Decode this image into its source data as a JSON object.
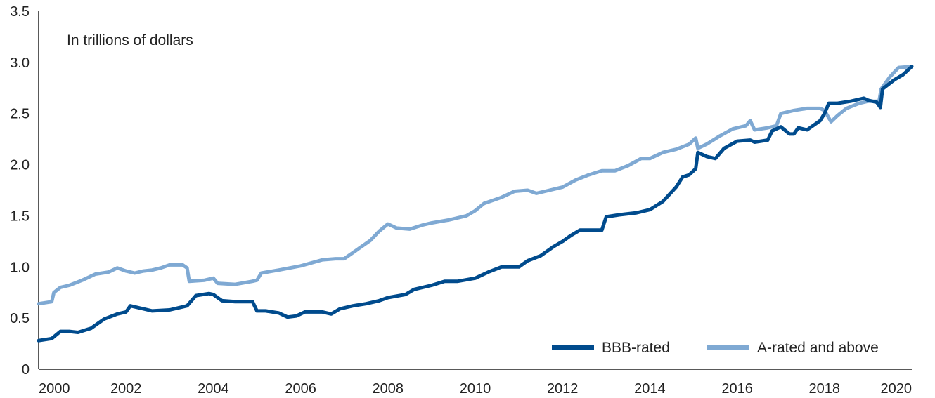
{
  "chart_data": {
    "type": "line",
    "title": "",
    "annotation": "In trillions of dollars",
    "xlabel": "",
    "ylabel": "",
    "xlim": [
      2000,
      2020
    ],
    "ylim": [
      0,
      3.5
    ],
    "x_ticks": [
      "2000",
      "2002",
      "2004",
      "2006",
      "2008",
      "2010",
      "2012",
      "2014",
      "2016",
      "2018",
      "2020"
    ],
    "y_ticks": [
      "0",
      "0.5",
      "1.0",
      "1.5",
      "2.0",
      "2.5",
      "3.0",
      "3.5"
    ],
    "grid": false,
    "legend_position": "bottom-right",
    "series": [
      {
        "name": "BBB-rated",
        "color": "#004b8d",
        "points": [
          [
            2000.0,
            0.28
          ],
          [
            2000.3,
            0.3
          ],
          [
            2000.5,
            0.37
          ],
          [
            2000.7,
            0.37
          ],
          [
            2000.9,
            0.36
          ],
          [
            2001.2,
            0.4
          ],
          [
            2001.5,
            0.49
          ],
          [
            2001.8,
            0.54
          ],
          [
            2002.0,
            0.56
          ],
          [
            2002.1,
            0.62
          ],
          [
            2002.4,
            0.59
          ],
          [
            2002.6,
            0.57
          ],
          [
            2003.0,
            0.58
          ],
          [
            2003.4,
            0.62
          ],
          [
            2003.6,
            0.72
          ],
          [
            2003.9,
            0.74
          ],
          [
            2004.0,
            0.73
          ],
          [
            2004.2,
            0.67
          ],
          [
            2004.5,
            0.66
          ],
          [
            2004.9,
            0.66
          ],
          [
            2005.0,
            0.57
          ],
          [
            2005.2,
            0.57
          ],
          [
            2005.5,
            0.55
          ],
          [
            2005.7,
            0.51
          ],
          [
            2005.9,
            0.52
          ],
          [
            2006.1,
            0.56
          ],
          [
            2006.5,
            0.56
          ],
          [
            2006.7,
            0.54
          ],
          [
            2006.9,
            0.59
          ],
          [
            2007.2,
            0.62
          ],
          [
            2007.5,
            0.64
          ],
          [
            2007.8,
            0.67
          ],
          [
            2008.0,
            0.7
          ],
          [
            2008.4,
            0.73
          ],
          [
            2008.6,
            0.78
          ],
          [
            2009.0,
            0.82
          ],
          [
            2009.3,
            0.86
          ],
          [
            2009.6,
            0.86
          ],
          [
            2010.0,
            0.89
          ],
          [
            2010.3,
            0.95
          ],
          [
            2010.6,
            1.0
          ],
          [
            2010.8,
            1.0
          ],
          [
            2011.0,
            1.0
          ],
          [
            2011.2,
            1.06
          ],
          [
            2011.5,
            1.11
          ],
          [
            2011.8,
            1.2
          ],
          [
            2012.0,
            1.25
          ],
          [
            2012.2,
            1.31
          ],
          [
            2012.4,
            1.36
          ],
          [
            2012.9,
            1.36
          ],
          [
            2013.0,
            1.49
          ],
          [
            2013.3,
            1.51
          ],
          [
            2013.7,
            1.53
          ],
          [
            2014.0,
            1.56
          ],
          [
            2014.3,
            1.64
          ],
          [
            2014.6,
            1.78
          ],
          [
            2014.75,
            1.88
          ],
          [
            2014.9,
            1.9
          ],
          [
            2015.05,
            1.96
          ],
          [
            2015.1,
            2.12
          ],
          [
            2015.3,
            2.08
          ],
          [
            2015.5,
            2.06
          ],
          [
            2015.7,
            2.16
          ],
          [
            2016.0,
            2.23
          ],
          [
            2016.3,
            2.24
          ],
          [
            2016.4,
            2.22
          ],
          [
            2016.7,
            2.24
          ],
          [
            2016.8,
            2.33
          ],
          [
            2017.0,
            2.37
          ],
          [
            2017.2,
            2.3
          ],
          [
            2017.3,
            2.3
          ],
          [
            2017.4,
            2.36
          ],
          [
            2017.6,
            2.34
          ],
          [
            2017.9,
            2.43
          ],
          [
            2018.0,
            2.5
          ],
          [
            2018.1,
            2.6
          ],
          [
            2018.3,
            2.6
          ],
          [
            2018.6,
            2.62
          ],
          [
            2018.9,
            2.65
          ],
          [
            2019.0,
            2.63
          ],
          [
            2019.2,
            2.61
          ],
          [
            2019.28,
            2.56
          ],
          [
            2019.33,
            2.74
          ],
          [
            2019.6,
            2.83
          ],
          [
            2019.8,
            2.88
          ],
          [
            2020.0,
            2.96
          ]
        ]
      },
      {
        "name": "A-rated and above",
        "color": "#7fa9d3",
        "points": [
          [
            2000.0,
            0.64
          ],
          [
            2000.3,
            0.66
          ],
          [
            2000.35,
            0.75
          ],
          [
            2000.5,
            0.8
          ],
          [
            2000.7,
            0.82
          ],
          [
            2001.0,
            0.87
          ],
          [
            2001.3,
            0.93
          ],
          [
            2001.6,
            0.95
          ],
          [
            2001.8,
            0.99
          ],
          [
            2002.0,
            0.96
          ],
          [
            2002.2,
            0.94
          ],
          [
            2002.4,
            0.96
          ],
          [
            2002.6,
            0.97
          ],
          [
            2002.8,
            0.99
          ],
          [
            2003.0,
            1.02
          ],
          [
            2003.3,
            1.02
          ],
          [
            2003.4,
            0.99
          ],
          [
            2003.45,
            0.86
          ],
          [
            2003.8,
            0.87
          ],
          [
            2004.0,
            0.89
          ],
          [
            2004.1,
            0.84
          ],
          [
            2004.5,
            0.83
          ],
          [
            2004.9,
            0.86
          ],
          [
            2005.0,
            0.87
          ],
          [
            2005.1,
            0.94
          ],
          [
            2005.5,
            0.97
          ],
          [
            2006.0,
            1.01
          ],
          [
            2006.5,
            1.07
          ],
          [
            2006.8,
            1.08
          ],
          [
            2007.0,
            1.08
          ],
          [
            2007.3,
            1.17
          ],
          [
            2007.6,
            1.26
          ],
          [
            2007.8,
            1.35
          ],
          [
            2008.0,
            1.42
          ],
          [
            2008.2,
            1.38
          ],
          [
            2008.5,
            1.37
          ],
          [
            2008.8,
            1.41
          ],
          [
            2009.0,
            1.43
          ],
          [
            2009.4,
            1.46
          ],
          [
            2009.8,
            1.5
          ],
          [
            2010.0,
            1.55
          ],
          [
            2010.2,
            1.62
          ],
          [
            2010.6,
            1.68
          ],
          [
            2010.9,
            1.74
          ],
          [
            2011.2,
            1.75
          ],
          [
            2011.4,
            1.72
          ],
          [
            2011.6,
            1.74
          ],
          [
            2012.0,
            1.78
          ],
          [
            2012.3,
            1.85
          ],
          [
            2012.6,
            1.9
          ],
          [
            2012.9,
            1.94
          ],
          [
            2013.2,
            1.94
          ],
          [
            2013.5,
            1.99
          ],
          [
            2013.8,
            2.06
          ],
          [
            2014.0,
            2.06
          ],
          [
            2014.3,
            2.12
          ],
          [
            2014.6,
            2.15
          ],
          [
            2014.9,
            2.2
          ],
          [
            2015.05,
            2.26
          ],
          [
            2015.1,
            2.16
          ],
          [
            2015.3,
            2.2
          ],
          [
            2015.6,
            2.28
          ],
          [
            2015.9,
            2.35
          ],
          [
            2016.2,
            2.38
          ],
          [
            2016.3,
            2.43
          ],
          [
            2016.4,
            2.34
          ],
          [
            2016.7,
            2.36
          ],
          [
            2016.9,
            2.38
          ],
          [
            2017.0,
            2.5
          ],
          [
            2017.3,
            2.53
          ],
          [
            2017.6,
            2.55
          ],
          [
            2017.9,
            2.55
          ],
          [
            2018.0,
            2.53
          ],
          [
            2018.15,
            2.42
          ],
          [
            2018.3,
            2.48
          ],
          [
            2018.5,
            2.55
          ],
          [
            2018.8,
            2.6
          ],
          [
            2019.0,
            2.62
          ],
          [
            2019.25,
            2.62
          ],
          [
            2019.3,
            2.74
          ],
          [
            2019.5,
            2.86
          ],
          [
            2019.7,
            2.95
          ],
          [
            2020.0,
            2.96
          ]
        ]
      }
    ]
  }
}
